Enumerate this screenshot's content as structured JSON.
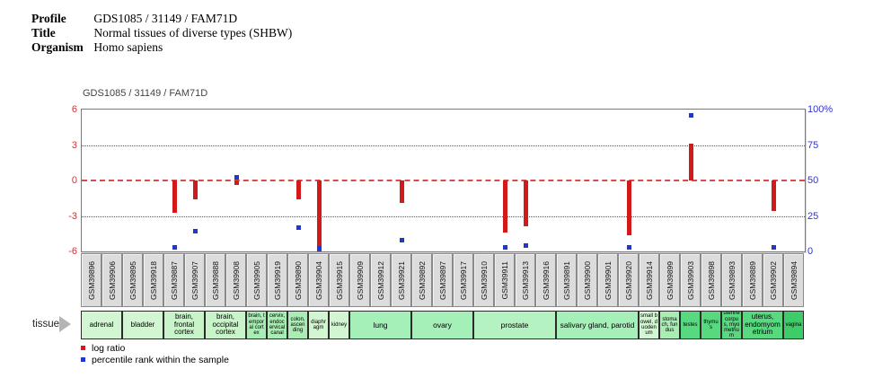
{
  "header": {
    "profile_label": "Profile",
    "profile_value": "GDS1085 / 31149 / FAM71D",
    "title_label": "Title",
    "title_value": "Normal tissues of diverse types (SHBW)",
    "organism_label": "Organism",
    "organism_value": "Homo sapiens"
  },
  "chart": {
    "title": "GDS1085 / 31149 / FAM71D",
    "tissue_label": "tissue",
    "left_axis_color": "#cc3333",
    "right_axis_color": "#3333cc",
    "bar_color": "#d11a1a",
    "point_color": "#2236cc",
    "zero_line_color": "#e04848"
  },
  "legend": [
    {
      "swatch_color": "#d11a1a",
      "label": "log ratio"
    },
    {
      "swatch_color": "#2236cc",
      "label": "percentile rank within the sample"
    }
  ],
  "chart_data": {
    "type": "bar",
    "title": "GDS1085 / 31149 / FAM71D",
    "ylabel_left": "log ratio",
    "ylabel_right": "percentile rank",
    "ylim_left": [
      -6,
      6
    ],
    "ylim_right": [
      0,
      100
    ],
    "left_ticks": [
      "6",
      "3",
      "0",
      "-3",
      "-6"
    ],
    "right_ticks": [
      "100%",
      "75",
      "50",
      "25",
      "0"
    ],
    "grid_values": [
      3,
      -3
    ],
    "samples": [
      {
        "id": "GSM39896",
        "log_ratio": null,
        "percentile": null
      },
      {
        "id": "GSM39906",
        "log_ratio": null,
        "percentile": null
      },
      {
        "id": "GSM39895",
        "log_ratio": null,
        "percentile": null
      },
      {
        "id": "GSM39918",
        "log_ratio": null,
        "percentile": null
      },
      {
        "id": "GSM39887",
        "log_ratio": -2.7,
        "percentile": 3
      },
      {
        "id": "GSM39907",
        "log_ratio": -1.6,
        "percentile": 14
      },
      {
        "id": "GSM39888",
        "log_ratio": null,
        "percentile": null
      },
      {
        "id": "GSM39908",
        "log_ratio": -0.4,
        "percentile": 52
      },
      {
        "id": "GSM39905",
        "log_ratio": null,
        "percentile": null
      },
      {
        "id": "GSM39919",
        "log_ratio": null,
        "percentile": null
      },
      {
        "id": "GSM39890",
        "log_ratio": -1.6,
        "percentile": 17
      },
      {
        "id": "GSM39904",
        "log_ratio": -6.0,
        "percentile": 2
      },
      {
        "id": "GSM39915",
        "log_ratio": null,
        "percentile": null
      },
      {
        "id": "GSM39909",
        "log_ratio": null,
        "percentile": null
      },
      {
        "id": "GSM39912",
        "log_ratio": null,
        "percentile": null
      },
      {
        "id": "GSM39921",
        "log_ratio": -1.9,
        "percentile": 8
      },
      {
        "id": "GSM39892",
        "log_ratio": null,
        "percentile": null
      },
      {
        "id": "GSM39897",
        "log_ratio": null,
        "percentile": null
      },
      {
        "id": "GSM39917",
        "log_ratio": null,
        "percentile": null
      },
      {
        "id": "GSM39910",
        "log_ratio": null,
        "percentile": null
      },
      {
        "id": "GSM39911",
        "log_ratio": -4.4,
        "percentile": 3
      },
      {
        "id": "GSM39913",
        "log_ratio": -3.9,
        "percentile": 4
      },
      {
        "id": "GSM39916",
        "log_ratio": null,
        "percentile": null
      },
      {
        "id": "GSM39891",
        "log_ratio": null,
        "percentile": null
      },
      {
        "id": "GSM39900",
        "log_ratio": null,
        "percentile": null
      },
      {
        "id": "GSM39901",
        "log_ratio": null,
        "percentile": null
      },
      {
        "id": "GSM39920",
        "log_ratio": -4.6,
        "percentile": 3
      },
      {
        "id": "GSM39914",
        "log_ratio": null,
        "percentile": null
      },
      {
        "id": "GSM39899",
        "log_ratio": null,
        "percentile": null
      },
      {
        "id": "GSM39903",
        "log_ratio": 3.1,
        "percentile": 96
      },
      {
        "id": "GSM39898",
        "log_ratio": null,
        "percentile": null
      },
      {
        "id": "GSM39893",
        "log_ratio": null,
        "percentile": null
      },
      {
        "id": "GSM39889",
        "log_ratio": null,
        "percentile": null
      },
      {
        "id": "GSM39902",
        "log_ratio": -2.6,
        "percentile": 3
      },
      {
        "id": "GSM39894",
        "log_ratio": null,
        "percentile": null
      }
    ],
    "tissues": [
      {
        "label": "adrenal",
        "span": 2,
        "color": "#d2f5d2"
      },
      {
        "label": "bladder",
        "span": 2,
        "color": "#d2f5d2"
      },
      {
        "label": "brain, frontal cortex",
        "span": 2,
        "color": "#c9f3c9"
      },
      {
        "label": "brain, occipital cortex",
        "span": 2,
        "color": "#c9f3c9"
      },
      {
        "label": "brain, temporal cortex",
        "span": 1,
        "color": "#a9ecb4"
      },
      {
        "label": "cervix, endocervical canal",
        "span": 1,
        "color": "#a9ecb4"
      },
      {
        "label": "colon, ascending",
        "span": 1,
        "color": "#a9ecb4"
      },
      {
        "label": "diaphragm",
        "span": 1,
        "color": "#d2f5d2"
      },
      {
        "label": "kidney",
        "span": 1,
        "color": "#d2f5d2"
      },
      {
        "label": "lung",
        "span": 3,
        "color": "#a5efb8"
      },
      {
        "label": "ovary",
        "span": 3,
        "color": "#a5efb8"
      },
      {
        "label": "prostate",
        "span": 4,
        "color": "#b4f2c2"
      },
      {
        "label": "salivary gland, parotid",
        "span": 4,
        "color": "#a5efb8"
      },
      {
        "label": "small bowel, duodenum",
        "span": 1,
        "color": "#d2f5d2"
      },
      {
        "label": "stomach, fundus",
        "span": 1,
        "color": "#a9ecb4"
      },
      {
        "label": "testes",
        "span": 1,
        "color": "#58d97f"
      },
      {
        "label": "thymus",
        "span": 1,
        "color": "#58d97f"
      },
      {
        "label": "uterine corpus, myometrium",
        "span": 1,
        "color": "#58d97f"
      },
      {
        "label": "uterus, endomyometrium",
        "span": 2,
        "color": "#58d97f"
      },
      {
        "label": "vagina",
        "span": 1,
        "color": "#3ecc68"
      }
    ]
  }
}
